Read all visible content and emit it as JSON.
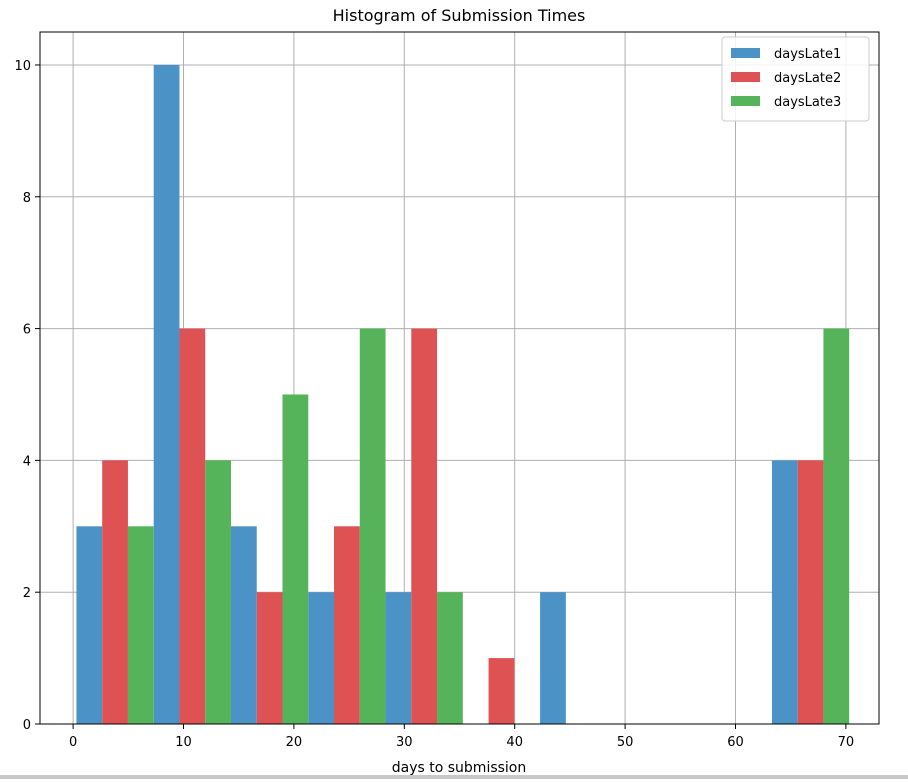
{
  "chart_data": {
    "type": "bar",
    "title": "Histogram of Submission Times",
    "xlabel": "days to submission",
    "ylabel": "",
    "xlim": [
      -3,
      73
    ],
    "ylim": [
      0,
      10.5
    ],
    "xticks": [
      0,
      10,
      20,
      30,
      40,
      50,
      60,
      70
    ],
    "yticks": [
      0,
      2,
      4,
      6,
      8,
      10
    ],
    "grid": true,
    "legend_position": "top-right",
    "bin_starts": [
      0.3,
      7.3,
      14.3,
      21.3,
      28.3,
      35.3,
      42.3,
      49.3,
      56.3,
      63.3
    ],
    "bin_width": 7,
    "series": [
      {
        "name": "daysLate1",
        "color": "#4b93c7",
        "values": [
          3,
          10,
          3,
          2,
          2,
          0,
          2,
          0,
          0,
          4
        ]
      },
      {
        "name": "daysLate2",
        "color": "#de5254",
        "values": [
          4,
          6,
          2,
          3,
          6,
          1,
          0,
          0,
          0,
          4
        ]
      },
      {
        "name": "daysLate3",
        "color": "#55b45a",
        "values": [
          3,
          4,
          5,
          6,
          2,
          0,
          0,
          0,
          0,
          6
        ]
      }
    ]
  }
}
